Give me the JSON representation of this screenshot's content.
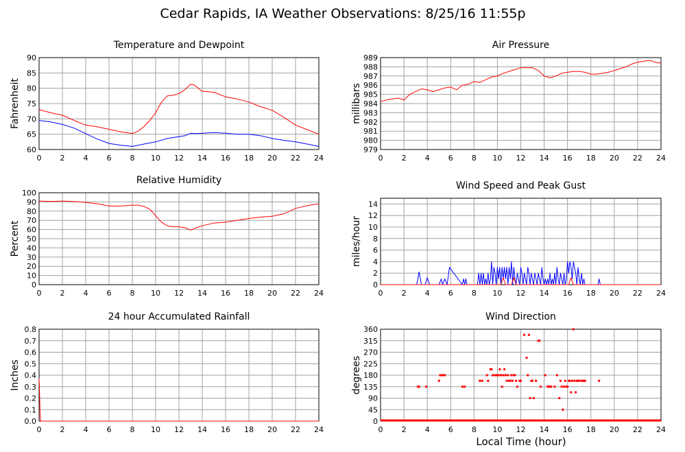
{
  "page_title": "Cedar Rapids, IA Weather Observations: 8/25/16 11:55p",
  "footer_xlabel": "Local Time (hour)",
  "colors": {
    "primary": "#ff0000",
    "secondary": "#0000ff",
    "grid": "#a0a0a0",
    "frame": "#000000"
  },
  "chart_data": [
    {
      "type": "line",
      "title": "Temperature and Dewpoint",
      "xlabel": "",
      "ylabel": "Fahrenheit",
      "xlim": [
        0,
        24
      ],
      "ylim": [
        60,
        90
      ],
      "xticks": [
        0,
        2,
        4,
        6,
        8,
        10,
        12,
        14,
        16,
        18,
        20,
        22,
        24
      ],
      "yticks": [
        60,
        65,
        70,
        75,
        80,
        85,
        90
      ],
      "grid": true,
      "series": [
        {
          "color": "#ff0000",
          "x": [
            0,
            1,
            2,
            3,
            4,
            5,
            6,
            7,
            8,
            8.5,
            9,
            9.5,
            10,
            10.5,
            11,
            11.5,
            12,
            12.5,
            13,
            13.3,
            14,
            15,
            16,
            17,
            18,
            19,
            20,
            21,
            22,
            23,
            24
          ],
          "y": [
            73,
            72,
            71.2,
            69.5,
            68,
            67.4,
            66.6,
            65.8,
            65.2,
            66,
            67.5,
            69.5,
            72,
            75.5,
            77.5,
            77.7,
            78.3,
            79.5,
            81.3,
            81.1,
            79,
            78.7,
            77.2,
            76.5,
            75.5,
            74,
            72.8,
            70.5,
            68,
            66.5,
            65
          ]
        },
        {
          "color": "#0000ff",
          "x": [
            0,
            1,
            2,
            3,
            4,
            5,
            6,
            7,
            8,
            9,
            10,
            11,
            12,
            12.5,
            13,
            13.5,
            14,
            15,
            16,
            17,
            18,
            19,
            20,
            21,
            22,
            23,
            24
          ],
          "y": [
            69.5,
            69,
            68.2,
            67,
            65.2,
            63.4,
            62,
            61.4,
            61,
            61.8,
            62.5,
            63.6,
            64.2,
            64.5,
            65.3,
            65.2,
            65.3,
            65.5,
            65.3,
            65,
            65,
            64.5,
            63.6,
            63,
            62.5,
            61.8,
            61
          ]
        }
      ]
    },
    {
      "type": "line",
      "title": "Air Pressure",
      "xlabel": "",
      "ylabel": "millibars",
      "xlim": [
        0,
        24
      ],
      "ylim": [
        979,
        989
      ],
      "xticks": [
        0,
        2,
        4,
        6,
        8,
        10,
        12,
        14,
        16,
        18,
        20,
        22,
        24
      ],
      "yticks": [
        979,
        980,
        981,
        982,
        983,
        984,
        985,
        986,
        987,
        988,
        989
      ],
      "grid": true,
      "series": [
        {
          "color": "#ff0000",
          "x": [
            0,
            0.5,
            1,
            1.5,
            2,
            2.5,
            3,
            3.5,
            4,
            4.5,
            5,
            5.5,
            6,
            6.5,
            7,
            7.5,
            8,
            8.5,
            9,
            9.5,
            10,
            10.5,
            11,
            11.5,
            12,
            12.5,
            13,
            13.5,
            14,
            14.5,
            15,
            15.5,
            16,
            16.5,
            17,
            17.5,
            18,
            18.5,
            19,
            19.5,
            20,
            20.5,
            21,
            21.5,
            22,
            22.5,
            23,
            23.5,
            24
          ],
          "y": [
            984.2,
            984.4,
            984.5,
            984.6,
            984.4,
            985,
            985.3,
            985.6,
            985.5,
            985.3,
            985.5,
            985.7,
            985.8,
            985.5,
            986,
            986.1,
            986.4,
            986.3,
            986.6,
            986.9,
            987,
            987.3,
            987.5,
            987.7,
            987.9,
            987.9,
            987.9,
            987.6,
            987,
            986.8,
            987,
            987.3,
            987.4,
            987.5,
            987.5,
            987.4,
            987.2,
            987.2,
            987.3,
            987.4,
            987.6,
            987.8,
            988,
            988.3,
            988.5,
            988.6,
            988.7,
            988.5,
            988.4
          ]
        }
      ]
    },
    {
      "type": "line",
      "title": "Relative Humidity",
      "xlabel": "",
      "ylabel": "Percent",
      "xlim": [
        0,
        24
      ],
      "ylim": [
        0,
        100
      ],
      "xticks": [
        0,
        2,
        4,
        6,
        8,
        10,
        12,
        14,
        16,
        18,
        20,
        22,
        24
      ],
      "yticks": [
        0,
        10,
        20,
        30,
        40,
        50,
        60,
        70,
        80,
        90,
        100
      ],
      "grid": true,
      "series": [
        {
          "color": "#ff0000",
          "x": [
            0,
            1,
            2,
            3,
            4,
            5,
            6,
            7,
            8,
            8.5,
            9,
            9.5,
            10,
            10.5,
            11,
            11.5,
            12,
            12.5,
            13,
            13.5,
            14,
            15,
            16,
            17,
            18,
            19,
            20,
            21,
            22,
            23,
            24
          ],
          "y": [
            91,
            90.5,
            91,
            90.5,
            89.5,
            88,
            85.5,
            85.5,
            86.5,
            86.5,
            85,
            82,
            75,
            68,
            64,
            63,
            63,
            62,
            59.5,
            62,
            64,
            67,
            68,
            70,
            72,
            73.5,
            74.5,
            77,
            83,
            86,
            88
          ]
        }
      ]
    },
    {
      "type": "line",
      "title": "Wind Speed and Peak Gust",
      "xlabel": "",
      "ylabel": "miles/hour",
      "xlim": [
        0,
        24
      ],
      "ylim": [
        0,
        15
      ],
      "xticks": [
        0,
        2,
        4,
        6,
        8,
        10,
        12,
        14,
        16,
        18,
        20,
        22,
        24
      ],
      "yticks": [
        0,
        2,
        4,
        6,
        8,
        10,
        12,
        14
      ],
      "grid": true,
      "series": [
        {
          "color": "#0000ff",
          "x": [
            0,
            3.1,
            3.3,
            3.5,
            3.8,
            4.0,
            4.2,
            5.0,
            5.2,
            5.3,
            5.5,
            5.7,
            5.9,
            7.0,
            7.1,
            7.2,
            7.3,
            7.4,
            8.3,
            8.4,
            8.5,
            8.6,
            8.7,
            8.8,
            8.9,
            9.0,
            9.1,
            9.2,
            9.3,
            9.4,
            9.5,
            9.6,
            9.7,
            9.8,
            9.9,
            10.0,
            10.1,
            10.2,
            10.3,
            10.4,
            10.5,
            10.6,
            10.7,
            10.8,
            10.9,
            11.0,
            11.1,
            11.2,
            11.3,
            11.4,
            11.5,
            11.6,
            11.7,
            11.8,
            11.9,
            12.0,
            12.1,
            12.2,
            12.3,
            12.4,
            12.5,
            12.6,
            12.7,
            12.8,
            12.9,
            13.0,
            13.1,
            13.2,
            13.3,
            13.4,
            13.5,
            13.6,
            13.7,
            13.8,
            13.9,
            14.0,
            14.1,
            14.2,
            14.3,
            14.4,
            14.5,
            14.6,
            14.7,
            14.8,
            14.9,
            15.0,
            15.1,
            15.2,
            15.3,
            15.4,
            15.5,
            15.6,
            15.7,
            15.8,
            15.9,
            16.0,
            16.1,
            16.2,
            16.3,
            16.4,
            16.5,
            16.6,
            16.7,
            16.8,
            16.9,
            17.0,
            17.1,
            17.2,
            17.3,
            17.4,
            17.5,
            18.6,
            18.7,
            18.8,
            24
          ],
          "y": [
            0,
            0,
            2.2,
            0,
            0,
            1.2,
            0,
            0,
            1,
            0,
            1,
            0,
            3,
            0,
            1,
            0,
            1,
            0,
            0,
            2,
            0,
            2,
            0,
            2,
            0,
            1,
            0,
            2,
            0,
            1,
            4,
            0,
            3,
            2,
            0,
            3,
            1,
            3,
            0,
            3,
            1,
            3,
            1,
            3,
            0,
            3,
            1,
            4,
            0,
            3,
            1,
            0,
            2,
            1,
            0,
            3,
            2,
            0,
            2,
            1,
            0,
            3,
            2,
            0,
            2,
            1,
            0,
            2,
            1,
            0,
            2,
            1,
            0,
            3,
            1,
            0,
            1,
            0,
            1,
            0,
            2,
            0,
            1,
            0,
            2,
            0,
            3,
            1,
            0,
            2,
            1,
            0,
            2,
            0,
            1,
            4,
            2,
            4,
            3,
            1,
            4,
            3,
            2,
            0,
            3,
            1,
            0,
            2,
            0,
            1,
            0,
            0,
            1,
            0,
            0
          ]
        },
        {
          "color": "#ff0000",
          "x": [
            0,
            10.3,
            10.5,
            10.7,
            11.2,
            11.4,
            11.6,
            16.1,
            16.3,
            16.5,
            24
          ],
          "y": [
            0,
            0,
            1.2,
            0,
            0,
            1.2,
            0,
            0,
            1.2,
            0,
            0
          ]
        }
      ]
    },
    {
      "type": "area",
      "title": "24 hour Accumulated Rainfall",
      "xlabel": "",
      "ylabel": "Inches",
      "xlim": [
        0,
        24
      ],
      "ylim": [
        0,
        0.8
      ],
      "xticks": [
        0,
        2,
        4,
        6,
        8,
        10,
        12,
        14,
        16,
        18,
        20,
        22,
        24
      ],
      "yticks": [
        0.0,
        0.1,
        0.2,
        0.3,
        0.4,
        0.5,
        0.6,
        0.7,
        0.8
      ],
      "ytick_labels": [
        "0.0",
        "0.1",
        "0.2",
        "0.3",
        "0.4",
        "0.5",
        "0.6",
        "0.7",
        "0.8"
      ],
      "grid": true,
      "series": [
        {
          "color": "#ff0000",
          "x": [
            0,
            0.02,
            0.05,
            0.08,
            0.1,
            0.15,
            24
          ],
          "y": [
            0.37,
            0.33,
            0.2,
            0.08,
            0.02,
            0,
            0
          ]
        }
      ]
    },
    {
      "type": "scatter",
      "title": "Wind Direction",
      "xlabel": "Local Time (hour)",
      "ylabel": "degrees",
      "xlim": [
        0,
        24
      ],
      "ylim": [
        0,
        360
      ],
      "xticks": [
        0,
        2,
        4,
        6,
        8,
        10,
        12,
        14,
        16,
        18,
        20,
        22,
        24
      ],
      "yticks": [
        0,
        45,
        90,
        135,
        180,
        225,
        270,
        315,
        360
      ],
      "grid": true,
      "baseline_zero": true,
      "series": [
        {
          "color": "#ff0000",
          "x": [
            3.2,
            3.3,
            3.9,
            5.0,
            5.1,
            5.2,
            5.3,
            5.4,
            5.5,
            7.0,
            7.2,
            8.5,
            8.7,
            9.1,
            9.2,
            9.4,
            9.5,
            9.6,
            9.8,
            9.9,
            10.0,
            10.1,
            10.2,
            10.3,
            10.4,
            10.5,
            10.6,
            10.7,
            10.8,
            10.9,
            11.0,
            11.1,
            11.2,
            11.3,
            11.4,
            11.5,
            11.6,
            11.7,
            11.9,
            12.0,
            12.3,
            12.5,
            12.6,
            12.7,
            12.8,
            12.9,
            13.0,
            13.1,
            13.3,
            13.5,
            13.6,
            13.7,
            14.1,
            14.3,
            14.4,
            14.5,
            14.6,
            14.9,
            15.1,
            15.3,
            15.4,
            15.5,
            15.6,
            15.7,
            15.8,
            15.9,
            16.0,
            16.1,
            16.2,
            16.3,
            16.4,
            16.5,
            16.6,
            16.7,
            16.8,
            16.9,
            17.0,
            17.2,
            17.3,
            17.4,
            17.5,
            18.7
          ],
          "y": [
            135,
            135,
            135,
            158,
            180,
            180,
            180,
            180,
            180,
            135,
            135,
            158,
            158,
            180,
            158,
            203,
            203,
            180,
            180,
            180,
            180,
            180,
            203,
            180,
            135,
            180,
            203,
            180,
            158,
            180,
            158,
            158,
            180,
            158,
            180,
            180,
            158,
            135,
            158,
            158,
            338,
            248,
            180,
            338,
            90,
            158,
            158,
            90,
            158,
            315,
            315,
            135,
            180,
            135,
            135,
            135,
            135,
            135,
            180,
            90,
            158,
            135,
            45,
            135,
            158,
            135,
            135,
            158,
            158,
            113,
            158,
            360,
            158,
            113,
            158,
            158,
            158,
            158,
            158,
            158,
            158,
            158
          ]
        }
      ]
    }
  ]
}
